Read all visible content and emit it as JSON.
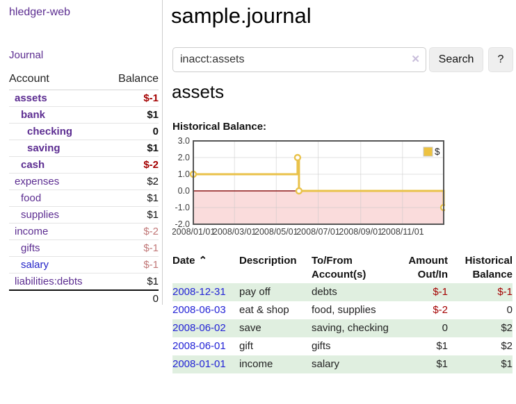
{
  "app": {
    "brand": "hledger-web"
  },
  "sidebar": {
    "journal_link": "Journal",
    "accounts_table": {
      "headers": {
        "account": "Account",
        "balance": "Balance"
      },
      "rows": [
        {
          "name": "assets",
          "balance": "$-1",
          "depth": "d1",
          "emph": "emph",
          "tone": "neg-strong"
        },
        {
          "name": "bank",
          "balance": "$1",
          "depth": "d2",
          "emph": "emph"
        },
        {
          "name": "checking",
          "balance": "0",
          "depth": "d3",
          "emph": "emph"
        },
        {
          "name": "saving",
          "balance": "$1",
          "depth": "d3",
          "emph": "emph"
        },
        {
          "name": "cash",
          "balance": "$-2",
          "depth": "d2",
          "emph": "emph",
          "tone": "neg-strong"
        },
        {
          "name": "expenses",
          "balance": "$2",
          "depth": "d1"
        },
        {
          "name": "food",
          "balance": "$1",
          "depth": "d2"
        },
        {
          "name": "supplies",
          "balance": "$1",
          "depth": "d2"
        },
        {
          "name": "income",
          "balance": "$-2",
          "depth": "d1",
          "tone": "neg-soft"
        },
        {
          "name": "gifts",
          "balance": "$-1",
          "depth": "d2",
          "tone": "neg-soft"
        },
        {
          "name": "salary",
          "balance": "$-1",
          "depth": "d2",
          "tone": "neg-soft",
          "link": "fresh"
        },
        {
          "name": "liabilities:debts",
          "balance": "$1",
          "depth": "d1"
        }
      ],
      "total": "0"
    }
  },
  "main": {
    "title": "sample.journal",
    "search": {
      "value": "inacct:assets",
      "clear_icon": "✕",
      "button_label": "Search",
      "help_label": "?"
    },
    "account_heading": "assets",
    "chart_label": "Historical Balance:"
  },
  "chart_data": {
    "type": "line-step",
    "title": "Historical Balance:",
    "series": [
      {
        "name": "$",
        "points": [
          {
            "date": "2008-01-01",
            "day": 0,
            "value": 1
          },
          {
            "date": "2008-06-01",
            "day": 152,
            "value": 2
          },
          {
            "date": "2008-06-03",
            "day": 154,
            "value": 0
          },
          {
            "date": "2008-12-31",
            "day": 365,
            "value": -1
          }
        ]
      }
    ],
    "ylim": [
      -2,
      3
    ],
    "yticks": [
      "3.0",
      "2.0",
      "1.0",
      "0.0",
      "-1.0",
      "-2.0"
    ],
    "xlim_days": [
      0,
      365
    ],
    "xticks": [
      {
        "label": "2008/01/01",
        "day": 0
      },
      {
        "label": "2008/03/01",
        "day": 60
      },
      {
        "label": "2008/05/01",
        "day": 121
      },
      {
        "label": "2008/07/01",
        "day": 182
      },
      {
        "label": "2008/09/01",
        "day": 244
      },
      {
        "label": "2008/11/01",
        "day": 305
      }
    ],
    "legend": {
      "label": "$",
      "position": "top-right"
    },
    "grid": true,
    "colors": {
      "line": "#e9c24a",
      "marker_fill": "#ffffff",
      "negative_region": "#fadcdc",
      "zero_line": "#8b1515",
      "border": "#545454",
      "grid": "#c9c9c9",
      "legend_swatch": "#edc240",
      "tick_text": "#3c3c3c"
    }
  },
  "register": {
    "headers": {
      "date": "Date",
      "sort_icon": "⌃",
      "description": "Description",
      "accounts": "To/From Account(s)",
      "amount": "Amount Out/In",
      "balance": "Historical Balance"
    },
    "rows": [
      {
        "date": "2008-12-31",
        "description": "pay off",
        "accounts": "debts",
        "amount": "$-1",
        "amount_tone": "neg",
        "balance": "$-1",
        "balance_tone": "neg"
      },
      {
        "date": "2008-06-03",
        "description": "eat & shop",
        "accounts": "food, supplies",
        "amount": "$-2",
        "amount_tone": "neg",
        "balance": "0"
      },
      {
        "date": "2008-06-02",
        "description": "save",
        "accounts": "saving, checking",
        "amount": "0",
        "balance": "$2"
      },
      {
        "date": "2008-06-01",
        "description": "gift",
        "accounts": "gifts",
        "amount": "$1",
        "balance": "$2"
      },
      {
        "date": "2008-01-01",
        "description": "income",
        "accounts": "salary",
        "amount": "$1",
        "balance": "$1"
      }
    ]
  }
}
